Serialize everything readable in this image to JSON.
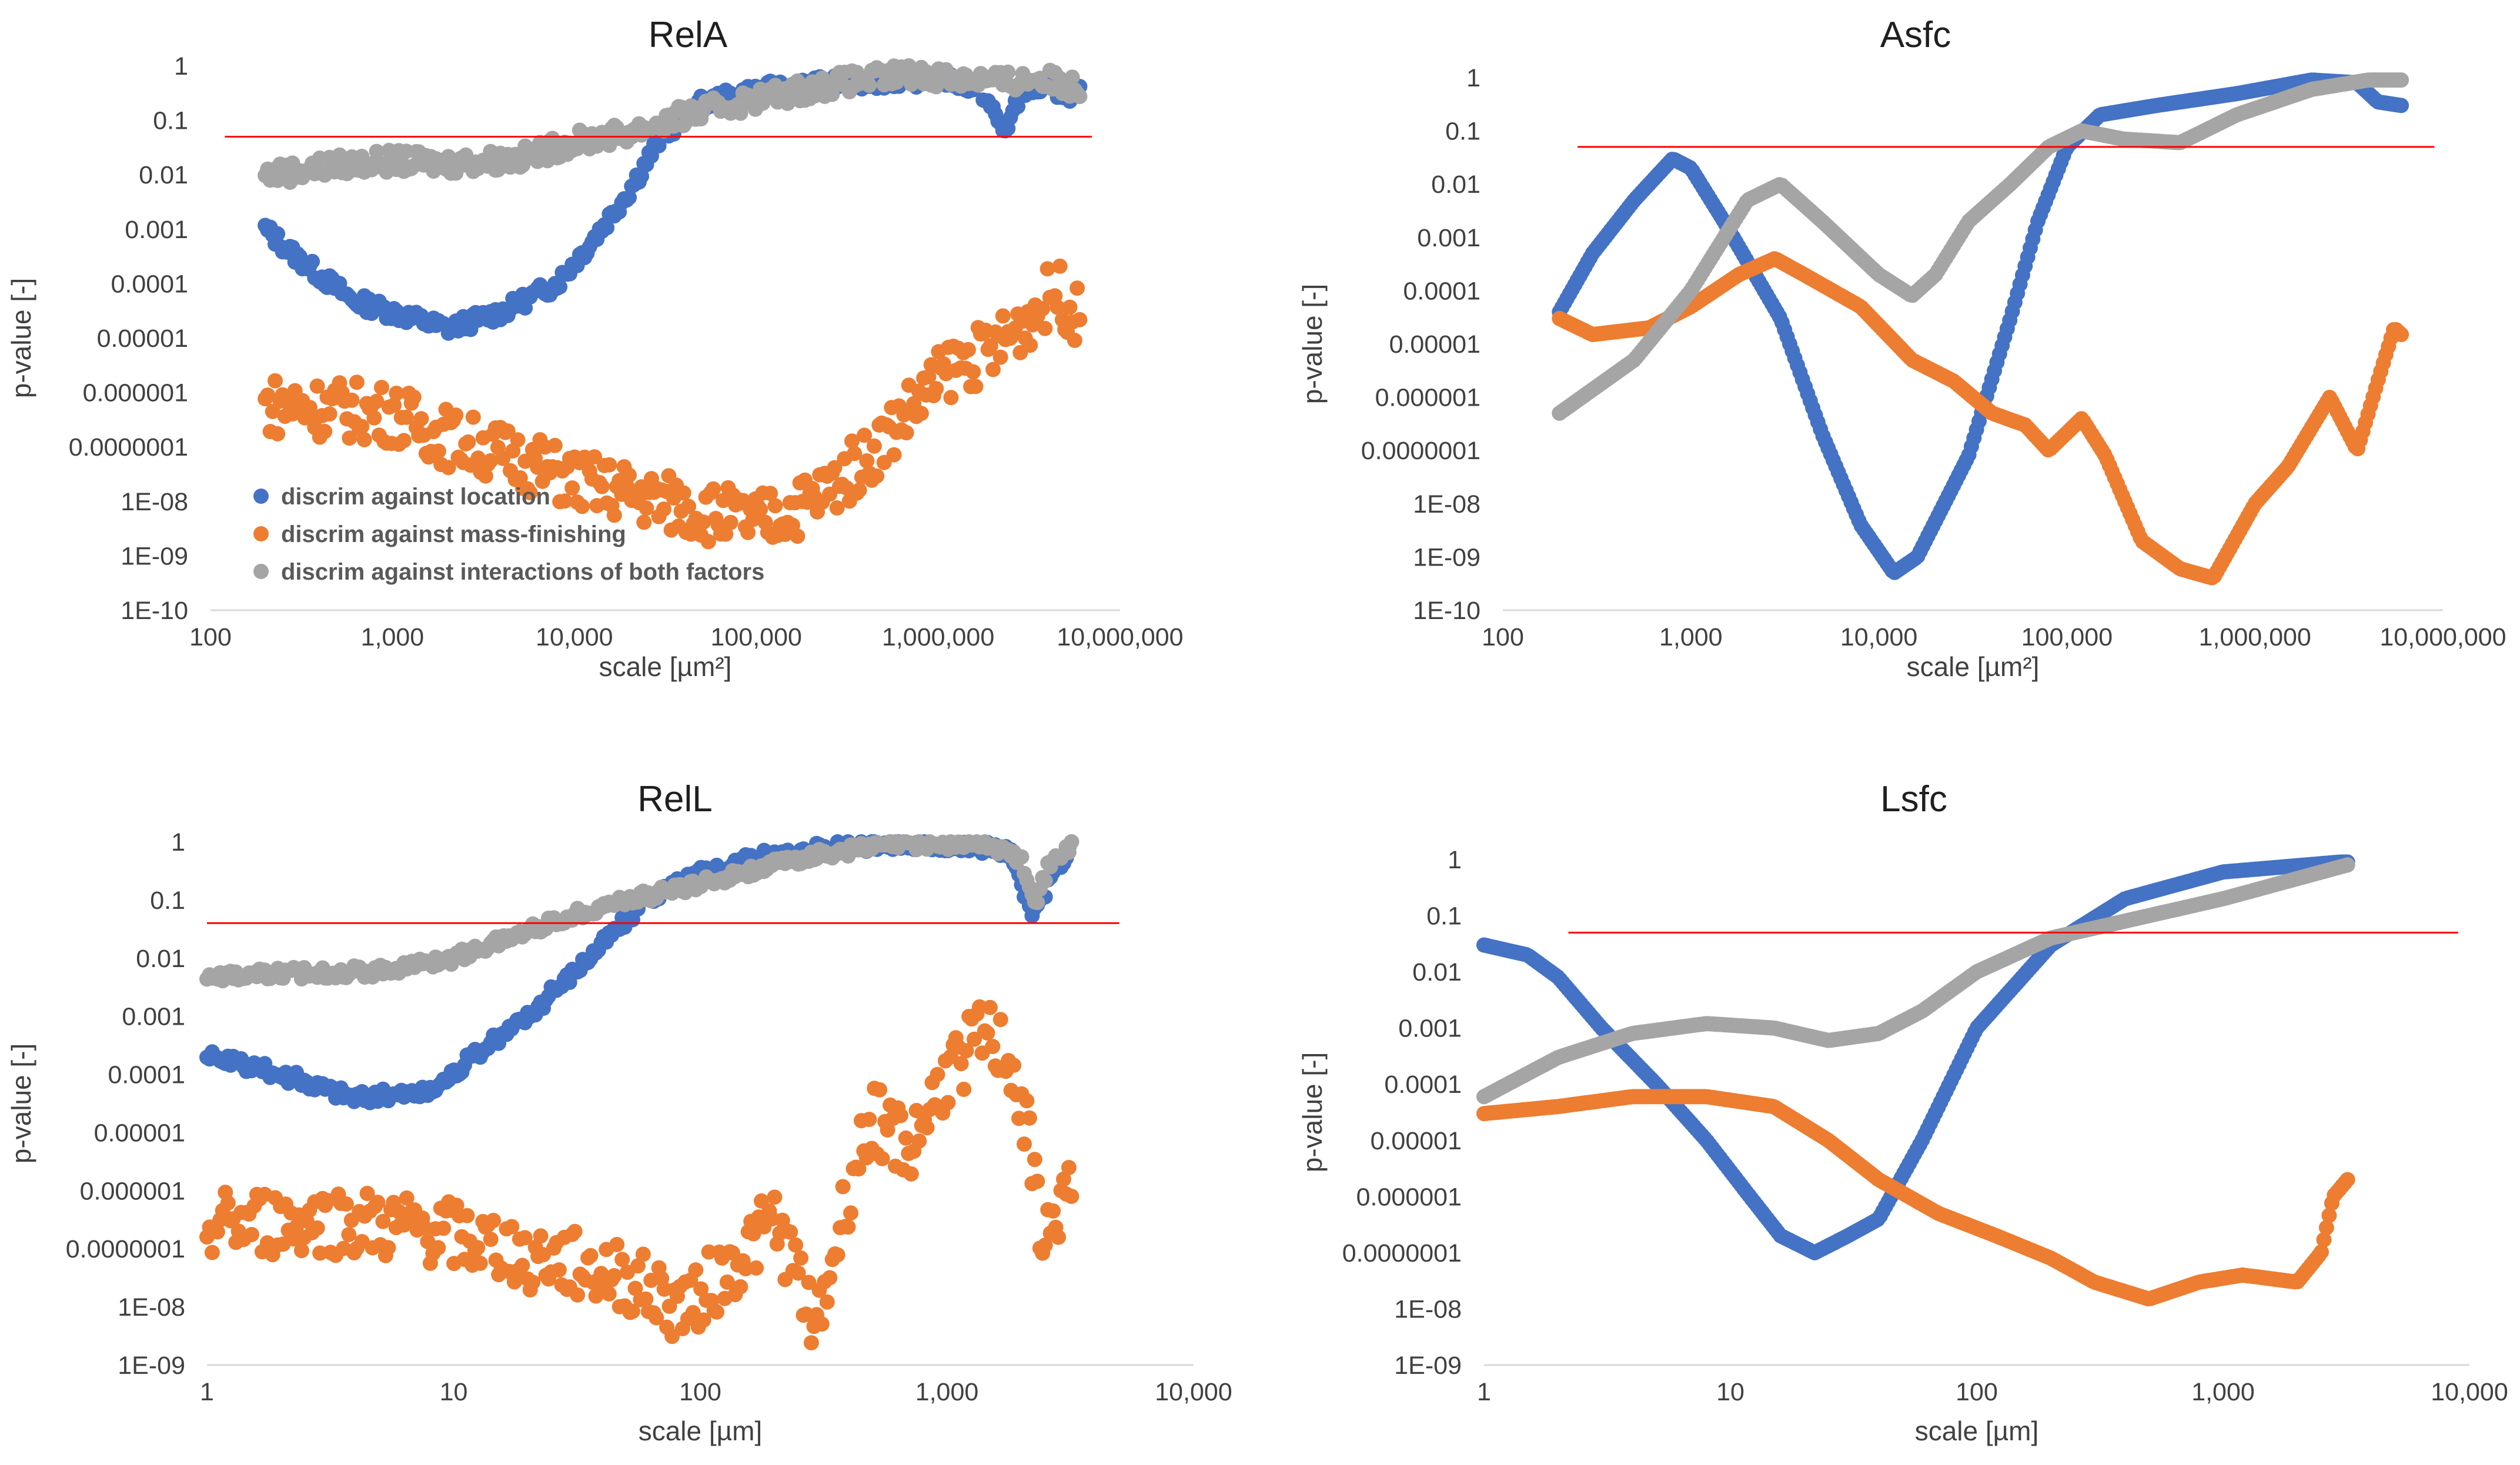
{
  "series_colors": {
    "location": "#4472c4",
    "mass_finishing": "#ed7d31",
    "interactions": "#a5a5a5",
    "threshold": "#ff0000"
  },
  "legend": [
    "discrim against location",
    "discrim against mass-finishing",
    "discrim against interactions of both factors"
  ],
  "chart_data": [
    {
      "type": "scatter",
      "title": "RelA",
      "xscale": "log",
      "yscale": "log",
      "xlabel": "scale [µm²]",
      "ylabel": "p-value [-]",
      "xlim": [
        100,
        10000000
      ],
      "ylim": [
        1e-10,
        1
      ],
      "x_tick_labels": [
        "100",
        "1,000",
        "10,000",
        "100,000",
        "1,000,000",
        "10,000,000"
      ],
      "y_tick_labels": [
        "1",
        "0.1",
        "0.01",
        "0.001",
        "0.0001",
        "0.00001",
        "0.000001",
        "0.0000001",
        "1E-08",
        "1E-09",
        "1E-10"
      ],
      "threshold": {
        "value": 0.05,
        "x_from": 120,
        "x_to": 7000000
      },
      "x_range": [
        200,
        6000000
      ],
      "series": [
        {
          "name": "discrim against location",
          "color": "#4472c4",
          "noise": 0.15,
          "points": [
            [
              200,
              0.001
            ],
            [
              300,
              0.0003
            ],
            [
              600,
              5e-05
            ],
            [
              1000,
              3e-05
            ],
            [
              2000,
              1.5e-05
            ],
            [
              4000,
              3e-05
            ],
            [
              8000,
              0.0001
            ],
            [
              12000,
              0.0005
            ],
            [
              20000,
              0.005
            ],
            [
              30000,
              0.05
            ],
            [
              50000,
              0.2
            ],
            [
              100000,
              0.35
            ],
            [
              300000,
              0.5
            ],
            [
              1000000,
              0.6
            ],
            [
              1700000,
              0.4
            ],
            [
              2300000,
              0.06
            ],
            [
              3000000,
              0.4
            ],
            [
              6000000,
              0.3
            ]
          ]
        },
        {
          "name": "discrim against mass-finishing",
          "color": "#ed7d31",
          "noise": 0.55,
          "points": [
            [
              200,
              6e-07
            ],
            [
              500,
              5e-07
            ],
            [
              1000,
              4e-07
            ],
            [
              2000,
              1.5e-07
            ],
            [
              5000,
              6e-08
            ],
            [
              10000,
              2.5e-08
            ],
            [
              30000,
              1e-08
            ],
            [
              100000,
              4e-09
            ],
            [
              200000,
              1e-08
            ],
            [
              400000,
              6e-08
            ],
            [
              700000,
              5e-07
            ],
            [
              1200000,
              3e-06
            ],
            [
              2000000,
              6e-06
            ],
            [
              3000000,
              2e-05
            ],
            [
              4500000,
              8e-05
            ],
            [
              6000000,
              2e-05
            ]
          ]
        },
        {
          "name": "discrim against interactions of both factors",
          "color": "#a5a5a5",
          "noise": 0.2,
          "points": [
            [
              200,
              0.01
            ],
            [
              500,
              0.015
            ],
            [
              1000,
              0.018
            ],
            [
              2000,
              0.016
            ],
            [
              5000,
              0.02
            ],
            [
              10000,
              0.04
            ],
            [
              20000,
              0.06
            ],
            [
              40000,
              0.12
            ],
            [
              100000,
              0.25
            ],
            [
              300000,
              0.5
            ],
            [
              700000,
              0.7
            ],
            [
              1500000,
              0.6
            ],
            [
              2500000,
              0.5
            ],
            [
              3500000,
              0.6
            ],
            [
              6000000,
              0.4
            ]
          ]
        }
      ],
      "legend_position": "bottom-left (inside plot)"
    },
    {
      "type": "scatter",
      "title": "Asfc",
      "xscale": "log",
      "yscale": "log",
      "xlabel": "scale [µm²]",
      "ylabel": "p-value [-]",
      "xlim": [
        100,
        10000000
      ],
      "ylim": [
        1e-10,
        1
      ],
      "x_tick_labels": [
        "100",
        "1,000",
        "10,000",
        "100,000",
        "1,000,000",
        "10,000,000"
      ],
      "y_tick_labels": [
        "1",
        "0.1",
        "0.01",
        "0.001",
        "0.0001",
        "0.00001",
        "0.000001",
        "0.0000001",
        "1E-08",
        "1E-09",
        "1E-10"
      ],
      "threshold": {
        "value": 0.05,
        "x_from": 250,
        "x_to": 9000000
      },
      "x_range": [
        200,
        6000000
      ],
      "series": [
        {
          "name": "discrim against location",
          "color": "#4472c4",
          "noise": 0,
          "points": [
            [
              200,
              4e-05
            ],
            [
              300,
              0.0005
            ],
            [
              500,
              0.005
            ],
            [
              800,
              0.03
            ],
            [
              1000,
              0.02
            ],
            [
              1500,
              0.002
            ],
            [
              3000,
              3e-05
            ],
            [
              5000,
              2e-07
            ],
            [
              8000,
              4e-09
            ],
            [
              12000,
              5e-10
            ],
            [
              16000,
              1e-09
            ],
            [
              30000,
              8e-08
            ],
            [
              50000,
              3e-05
            ],
            [
              70000,
              0.002
            ],
            [
              100000,
              0.05
            ],
            [
              150000,
              0.2
            ],
            [
              300000,
              0.3
            ],
            [
              800000,
              0.5
            ],
            [
              2000000,
              0.9
            ],
            [
              3500000,
              0.8
            ],
            [
              4500000,
              0.35
            ],
            [
              6000000,
              0.3
            ]
          ]
        },
        {
          "name": "discrim against mass-finishing",
          "color": "#ed7d31",
          "noise": 0,
          "points": [
            [
              200,
              3e-05
            ],
            [
              300,
              1.5e-05
            ],
            [
              600,
              2e-05
            ],
            [
              1000,
              5e-05
            ],
            [
              1800,
              0.0002
            ],
            [
              2800,
              0.0004
            ],
            [
              4000,
              0.0002
            ],
            [
              8000,
              5e-05
            ],
            [
              15000,
              5e-06
            ],
            [
              25000,
              2e-06
            ],
            [
              40000,
              5e-07
            ],
            [
              60000,
              3e-07
            ],
            [
              80000,
              1e-07
            ],
            [
              120000,
              4e-07
            ],
            [
              160000,
              8e-08
            ],
            [
              250000,
              2e-09
            ],
            [
              400000,
              6e-10
            ],
            [
              600000,
              4e-10
            ],
            [
              1000000,
              1e-08
            ],
            [
              1500000,
              5e-08
            ],
            [
              2500000,
              1e-06
            ],
            [
              3500000,
              1e-07
            ],
            [
              4500000,
              2e-06
            ],
            [
              5500000,
              2e-05
            ],
            [
              6000000,
              1.5e-05
            ]
          ]
        },
        {
          "name": "discrim against interactions of both factors",
          "color": "#a5a5a5",
          "noise": 0,
          "points": [
            [
              200,
              5e-07
            ],
            [
              500,
              5e-06
            ],
            [
              1000,
              0.0001
            ],
            [
              2000,
              0.005
            ],
            [
              3000,
              0.01
            ],
            [
              5000,
              0.002
            ],
            [
              10000,
              0.0002
            ],
            [
              15000,
              8e-05
            ],
            [
              20000,
              0.0002
            ],
            [
              30000,
              0.002
            ],
            [
              50000,
              0.01
            ],
            [
              80000,
              0.05
            ],
            [
              120000,
              0.1
            ],
            [
              200000,
              0.07
            ],
            [
              400000,
              0.06
            ],
            [
              800000,
              0.2
            ],
            [
              2000000,
              0.6
            ],
            [
              4000000,
              0.9
            ],
            [
              6000000,
              0.9
            ]
          ]
        }
      ]
    },
    {
      "type": "scatter",
      "title": "RelL",
      "xscale": "log",
      "yscale": "log",
      "xlabel": "scale [µm]",
      "ylabel": "p-value [-]",
      "xlim": [
        1,
        10000
      ],
      "ylim": [
        1e-09,
        1
      ],
      "x_tick_labels": [
        "1",
        "10",
        "100",
        "1,000",
        "10,000"
      ],
      "y_tick_labels": [
        "1",
        "0.1",
        "0.01",
        "0.001",
        "0.0001",
        "0.00001",
        "0.000001",
        "0.0000001",
        "1E-08",
        "1E-09"
      ],
      "threshold": {
        "value": 0.04,
        "x_from": 1,
        "x_to": 5000
      },
      "x_range": [
        1,
        3200
      ],
      "series": [
        {
          "name": "discrim against location",
          "color": "#4472c4",
          "noise": 0.12,
          "points": [
            [
              1,
              0.0002
            ],
            [
              2,
              0.0001
            ],
            [
              4,
              4e-05
            ],
            [
              8,
              5e-05
            ],
            [
              12,
              0.0002
            ],
            [
              20,
              0.001
            ],
            [
              35,
              0.01
            ],
            [
              60,
              0.1
            ],
            [
              100,
              0.3
            ],
            [
              200,
              0.6
            ],
            [
              500,
              0.9
            ],
            [
              1000,
              0.9
            ],
            [
              1800,
              0.7
            ],
            [
              2200,
              0.05
            ],
            [
              2600,
              0.2
            ],
            [
              3200,
              0.9
            ]
          ]
        },
        {
          "name": "discrim against mass-finishing",
          "color": "#ed7d31",
          "noise": 0.6,
          "points": [
            [
              1,
              2.5e-07
            ],
            [
              3,
              3e-07
            ],
            [
              8,
              2e-07
            ],
            [
              20,
              8e-08
            ],
            [
              50,
              3e-08
            ],
            [
              80,
              1e-08
            ],
            [
              120,
              3e-08
            ],
            [
              200,
              3e-07
            ],
            [
              300,
              5e-09
            ],
            [
              400,
              1e-06
            ],
            [
              500,
              2e-05
            ],
            [
              700,
              5e-06
            ],
            [
              1000,
              0.0001
            ],
            [
              1400,
              0.0005
            ],
            [
              1800,
              0.0002
            ],
            [
              2100,
              1e-05
            ],
            [
              2500,
              1e-07
            ],
            [
              3000,
              1e-06
            ]
          ]
        },
        {
          "name": "discrim against interactions of both factors",
          "color": "#a5a5a5",
          "noise": 0.1,
          "points": [
            [
              1,
              0.005
            ],
            [
              5,
              0.006
            ],
            [
              10,
              0.01
            ],
            [
              20,
              0.03
            ],
            [
              40,
              0.08
            ],
            [
              80,
              0.15
            ],
            [
              150,
              0.3
            ],
            [
              300,
              0.6
            ],
            [
              600,
              0.9
            ],
            [
              1500,
              0.9
            ],
            [
              2000,
              0.5
            ],
            [
              2300,
              0.1
            ],
            [
              2600,
              0.4
            ],
            [
              3200,
              0.9
            ]
          ]
        }
      ]
    },
    {
      "type": "scatter",
      "title": "Lsfc",
      "xscale": "log",
      "yscale": "log",
      "xlabel": "scale [µm]",
      "ylabel": "p-value [-]",
      "xlim": [
        1,
        10000
      ],
      "ylim": [
        1e-09,
        1
      ],
      "x_tick_labels": [
        "1",
        "10",
        "100",
        "1,000",
        "10,000"
      ],
      "y_tick_labels": [
        "1",
        "0.1",
        "0.01",
        "0.001",
        "0.0001",
        "0.00001",
        "0.000001",
        "0.0000001",
        "1E-08",
        "1E-09"
      ],
      "threshold": {
        "value": 0.05,
        "x_from": 2.2,
        "x_to": 9000
      },
      "x_range": [
        1,
        3200
      ],
      "series": [
        {
          "name": "discrim against location",
          "color": "#4472c4",
          "noise": 0,
          "points": [
            [
              1,
              0.03
            ],
            [
              1.5,
              0.02
            ],
            [
              2,
              0.008
            ],
            [
              3,
              0.001
            ],
            [
              5,
              0.0001
            ],
            [
              8,
              1e-05
            ],
            [
              12,
              1e-06
            ],
            [
              16,
              2e-07
            ],
            [
              22,
              1e-07
            ],
            [
              30,
              2e-07
            ],
            [
              40,
              4e-07
            ],
            [
              60,
              1e-05
            ],
            [
              100,
              0.001
            ],
            [
              200,
              0.03
            ],
            [
              400,
              0.2
            ],
            [
              1000,
              0.6
            ],
            [
              3000,
              0.9
            ]
          ]
        },
        {
          "name": "discrim against mass-finishing",
          "color": "#ed7d31",
          "noise": 0,
          "points": [
            [
              1,
              3e-05
            ],
            [
              2,
              4e-05
            ],
            [
              4,
              6e-05
            ],
            [
              8,
              6e-05
            ],
            [
              15,
              4e-05
            ],
            [
              25,
              1e-05
            ],
            [
              40,
              2e-06
            ],
            [
              70,
              5e-07
            ],
            [
              120,
              2e-07
            ],
            [
              200,
              8e-08
            ],
            [
              300,
              3e-08
            ],
            [
              500,
              1.5e-08
            ],
            [
              800,
              3e-08
            ],
            [
              1200,
              4e-08
            ],
            [
              2000,
              3e-08
            ],
            [
              2500,
              1e-07
            ],
            [
              2800,
              1e-06
            ],
            [
              3200,
              2e-06
            ]
          ]
        },
        {
          "name": "discrim against interactions of both factors",
          "color": "#a5a5a5",
          "noise": 0,
          "points": [
            [
              1,
              6e-05
            ],
            [
              2,
              0.0003
            ],
            [
              4,
              0.0008
            ],
            [
              8,
              0.0012
            ],
            [
              15,
              0.001
            ],
            [
              25,
              0.0006
            ],
            [
              40,
              0.0008
            ],
            [
              60,
              0.002
            ],
            [
              100,
              0.01
            ],
            [
              200,
              0.04
            ],
            [
              400,
              0.08
            ],
            [
              1000,
              0.2
            ],
            [
              3200,
              0.8
            ]
          ]
        }
      ]
    }
  ]
}
